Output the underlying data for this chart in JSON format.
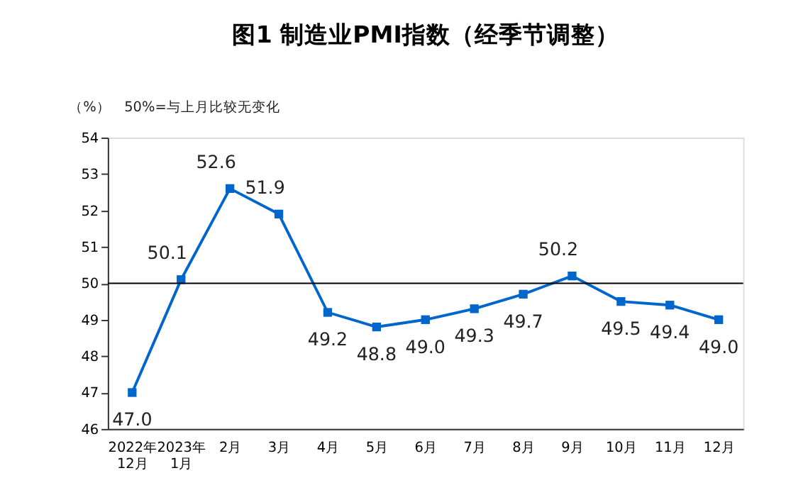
{
  "chart_data": {
    "type": "line",
    "title": "图1 制造业PMI指数（经季节调整）",
    "categories": [
      "2022年\n12月",
      "2023年\n1月",
      "2月",
      "3月",
      "4月",
      "5月",
      "6月",
      "7月",
      "8月",
      "9月",
      "10月",
      "11月",
      "12月"
    ],
    "series": [
      {
        "color": "#0066cc",
        "values": [
          47.0,
          50.1,
          52.6,
          51.9,
          49.2,
          48.8,
          49.0,
          49.3,
          49.7,
          50.2,
          49.5,
          49.4,
          49.0
        ]
      }
    ],
    "ylim": [
      46,
      54
    ],
    "yticks": [
      46,
      47,
      48,
      49,
      50,
      51,
      52,
      53,
      54
    ],
    "ref_lines": [
      {
        "axis": "y",
        "value": 50,
        "color": "#000000"
      }
    ],
    "annotations": [
      "（%）",
      "50%=与上月比较无变化"
    ],
    "value_labels": [
      "47.0",
      "50.1",
      "52.6",
      "51.9",
      "49.2",
      "48.8",
      "49.0",
      "49.3",
      "49.7",
      "50.2",
      "49.5",
      "49.4",
      "49.0"
    ],
    "marker": "square",
    "grid": false,
    "line_style": "solid"
  }
}
